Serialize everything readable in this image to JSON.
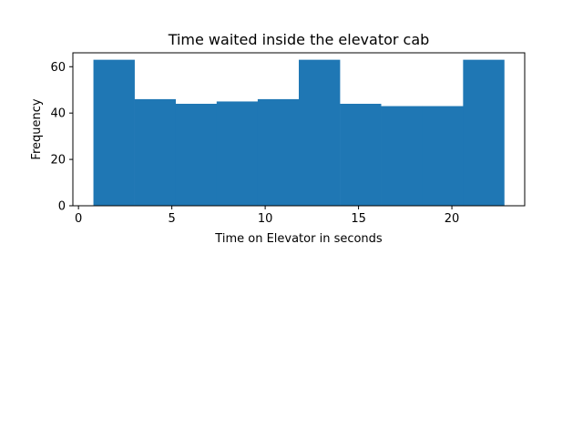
{
  "chart_data": {
    "type": "bar",
    "title": "Time waited inside the elevator cab",
    "xlabel": "Time on Elevator in seconds",
    "ylabel": "Frequency",
    "bin_edges": [
      0.8,
      3.0,
      5.2,
      7.4,
      9.6,
      11.8,
      14.0,
      16.2,
      18.4,
      20.6,
      22.8
    ],
    "values": [
      63,
      46,
      44,
      45,
      46,
      63,
      44,
      43,
      43,
      63
    ],
    "xlim": [
      -0.3,
      23.9
    ],
    "ylim": [
      0,
      66
    ],
    "xticks": [
      0,
      5,
      10,
      15,
      20
    ],
    "yticks": [
      0,
      20,
      40,
      60
    ],
    "bar_color": "#1f77b4",
    "grid": false,
    "legend": "none"
  }
}
